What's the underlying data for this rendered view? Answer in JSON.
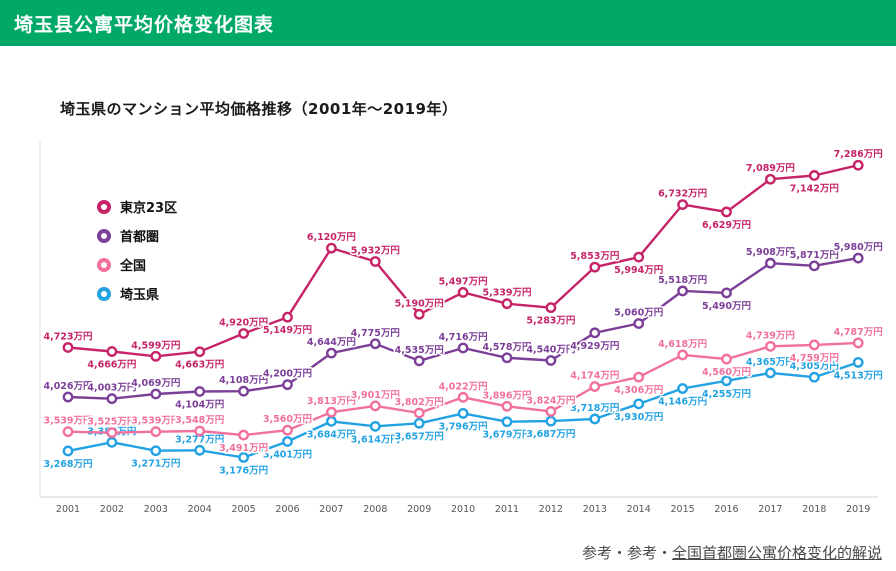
{
  "header": {
    "title": "埼玉县公寓平均价格变化图表",
    "bg_color": "#00a968"
  },
  "chart": {
    "title": "埼玉県のマンション平均価格推移（2001年〜2019年）"
  },
  "footer": {
    "prefix": "参考・参考・",
    "link": "全国首都圏公寓价格变化的解说"
  },
  "chart_data": {
    "type": "line",
    "title": "埼玉県のマンション平均価格推移（2001年〜2019年）",
    "unit": "万円",
    "categories": [
      "2001",
      "2002",
      "2003",
      "2004",
      "2005",
      "2006",
      "2007",
      "2008",
      "2009",
      "2010",
      "2011",
      "2012",
      "2013",
      "2014",
      "2015",
      "2016",
      "2017",
      "2018",
      "2019"
    ],
    "ylim": [
      3000,
      7500
    ],
    "grid": false,
    "legend_position": "upper-left-inside",
    "axis_color": "#cfcfcf",
    "series": [
      {
        "id": "tokyo23",
        "name": "東京23区",
        "color": "#c62368",
        "values": [
          4723,
          4666,
          4599,
          4663,
          4920,
          5149,
          6120,
          5932,
          5190,
          5497,
          5339,
          5283,
          5853,
          5994,
          6732,
          6629,
          7089,
          7142,
          7286
        ],
        "label_side": [
          "a",
          "b",
          "a",
          "b",
          "a",
          "b",
          "a",
          "a",
          "a",
          "a",
          "a",
          "b",
          "a",
          "b",
          "a",
          "b",
          "a",
          "b",
          "a"
        ]
      },
      {
        "id": "shutoken",
        "name": "首都圏",
        "color": "#7b3f98",
        "values": [
          4026,
          4003,
          4069,
          4104,
          4108,
          4200,
          4644,
          4775,
          4535,
          4716,
          4578,
          4540,
          4929,
          5060,
          5518,
          5490,
          5908,
          5871,
          5980
        ],
        "label_side": [
          "a",
          "a",
          "a",
          "b",
          "a",
          "a",
          "a",
          "a",
          "a",
          "a",
          "a",
          "a",
          "b",
          "a",
          "a",
          "b",
          "a",
          "a",
          "a"
        ]
      },
      {
        "id": "zenkoku",
        "name": "全国",
        "color": "#f1709f",
        "values": [
          3539,
          3525,
          3539,
          3548,
          3491,
          3560,
          3813,
          3901,
          3802,
          4022,
          3896,
          3824,
          4174,
          4306,
          4618,
          4560,
          4739,
          4759,
          4787
        ],
        "label_side": [
          "a",
          "a",
          "a",
          "a",
          "b",
          "a",
          "a",
          "a",
          "a",
          "a",
          "a",
          "a",
          "a",
          "b",
          "a",
          "b",
          "a",
          "b",
          "a"
        ]
      },
      {
        "id": "saitama",
        "name": "埼玉県",
        "color": "#23a2e3",
        "values": [
          3268,
          3389,
          3271,
          3277,
          3176,
          3401,
          3684,
          3614,
          3657,
          3796,
          3679,
          3687,
          3718,
          3930,
          4146,
          4255,
          4365,
          4305,
          4513
        ],
        "label_side": [
          "b",
          "a",
          "b",
          "a",
          "b",
          "b",
          "b",
          "b",
          "b",
          "b",
          "b",
          "b",
          "a",
          "b",
          "b",
          "b",
          "a",
          "a",
          "b"
        ]
      }
    ]
  }
}
